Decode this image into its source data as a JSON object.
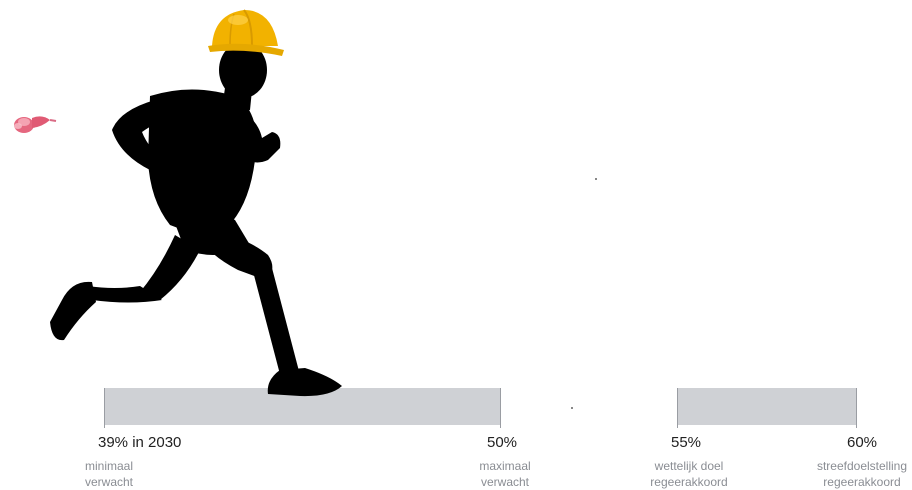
{
  "milestones": [
    {
      "value": "39% in 2030",
      "line1": "minimaal",
      "line2": "verwacht"
    },
    {
      "value": "50%",
      "line1": "maximaal",
      "line2": "verwacht"
    },
    {
      "value": "55%",
      "line1": "wettelijk doel",
      "line2": "regeerakkoord"
    },
    {
      "value": "60%",
      "line1": "streefdoelstelling",
      "line2": "regeerakkoord"
    }
  ],
  "icons": {
    "runner": "running-man-silhouette-icon",
    "helmet": "yellow-hard-hat-icon",
    "flying": "pink-flying-hat-icon"
  },
  "colors": {
    "band": "#cfd1d5",
    "helmet": "#f2b200",
    "silhouette": "#000000",
    "flying_hat": "#e5677f"
  }
}
